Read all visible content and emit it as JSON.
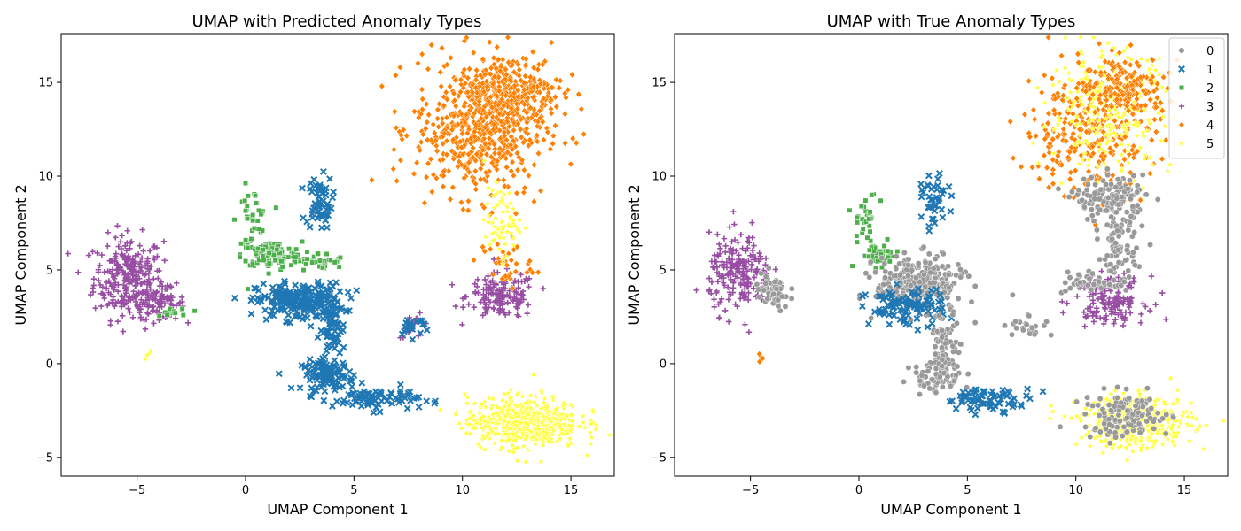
{
  "chart_data": [
    {
      "type": "scatter",
      "title": "UMAP with Predicted Anomaly Types",
      "xlabel": "UMAP Component 1",
      "ylabel": "UMAP Component 2",
      "xlim": [
        -8.5,
        17
      ],
      "ylim": [
        -6,
        17.6
      ],
      "xticks": [
        -5,
        0,
        5,
        10,
        15
      ],
      "yticks": [
        -5,
        0,
        5,
        10,
        15
      ],
      "xtick_labels": [
        "−5",
        "0",
        "5",
        "10",
        "15"
      ],
      "ytick_labels": [
        "−5",
        "0",
        "5",
        "10",
        "15"
      ],
      "grid": false,
      "legend": null,
      "clusters": [
        {
          "class": "3",
          "cx": -5.4,
          "cy": 4.6,
          "sx": 0.8,
          "sy": 1.1,
          "n": 260
        },
        {
          "class": "3",
          "cx": -4.0,
          "cy": 3.2,
          "sx": 0.6,
          "sy": 0.4,
          "n": 80
        },
        {
          "class": "3",
          "cx": 11.8,
          "cy": 3.6,
          "sx": 0.8,
          "sy": 0.6,
          "n": 150
        },
        {
          "class": "3",
          "cx": 7.8,
          "cy": 2.0,
          "sx": 0.4,
          "sy": 0.3,
          "n": 15
        },
        {
          "class": "2",
          "cx": 0.3,
          "cy": 7.6,
          "sx": 0.35,
          "sy": 0.9,
          "n": 45
        },
        {
          "class": "2",
          "cx": 1.2,
          "cy": 5.8,
          "sx": 0.7,
          "sy": 0.35,
          "n": 110
        },
        {
          "class": "2",
          "cx": 3.4,
          "cy": 5.4,
          "sx": 0.6,
          "sy": 0.25,
          "n": 35
        },
        {
          "class": "2",
          "cx": -3.3,
          "cy": 2.8,
          "sx": 0.4,
          "sy": 0.15,
          "n": 12
        },
        {
          "class": "1",
          "cx": 3.4,
          "cy": 8.6,
          "sx": 0.3,
          "sy": 0.7,
          "n": 60
        },
        {
          "class": "1",
          "cx": 2.5,
          "cy": 3.3,
          "sx": 1.0,
          "sy": 0.5,
          "n": 220
        },
        {
          "class": "1",
          "cx": 4.0,
          "cy": 1.8,
          "sx": 0.3,
          "sy": 0.8,
          "n": 60
        },
        {
          "class": "1",
          "cx": 3.8,
          "cy": -0.6,
          "sx": 0.6,
          "sy": 0.4,
          "n": 100
        },
        {
          "class": "1",
          "cx": 6.0,
          "cy": -1.9,
          "sx": 1.0,
          "sy": 0.3,
          "n": 80
        },
        {
          "class": "1",
          "cx": 7.7,
          "cy": 2.0,
          "sx": 0.4,
          "sy": 0.3,
          "n": 20
        },
        {
          "class": "4",
          "cx": 10.8,
          "cy": 12.5,
          "sx": 1.5,
          "sy": 1.8,
          "n": 520
        },
        {
          "class": "4",
          "cx": 12.2,
          "cy": 14.4,
          "sx": 1.2,
          "sy": 1.0,
          "n": 280
        },
        {
          "class": "4",
          "cx": 12.0,
          "cy": 5.3,
          "sx": 0.6,
          "sy": 0.7,
          "n": 35
        },
        {
          "class": "5",
          "cx": 11.8,
          "cy": 7.6,
          "sx": 0.4,
          "sy": 0.9,
          "n": 70
        },
        {
          "class": "5",
          "cx": 12.8,
          "cy": -3.1,
          "sx": 1.3,
          "sy": 0.7,
          "n": 520
        },
        {
          "class": "5",
          "cx": -4.5,
          "cy": 0.6,
          "sx": 0.1,
          "sy": 0.15,
          "n": 4
        }
      ]
    },
    {
      "type": "scatter",
      "title": "UMAP with True Anomaly Types",
      "xlabel": "UMAP Component 1",
      "ylabel": "UMAP Component 2",
      "xlim": [
        -8.5,
        17
      ],
      "ylim": [
        -6,
        17.6
      ],
      "xticks": [
        -5,
        0,
        5,
        10,
        15
      ],
      "yticks": [
        -5,
        0,
        5,
        10,
        15
      ],
      "xtick_labels": [
        "−5",
        "0",
        "5",
        "10",
        "15"
      ],
      "ytick_labels": [
        "−5",
        "0",
        "5",
        "10",
        "15"
      ],
      "grid": false,
      "legend": {
        "placement": "top-right",
        "entries": [
          {
            "label": "0",
            "marker": "circle",
            "color": "#999999"
          },
          {
            "label": "1",
            "marker": "x",
            "color": "#1f77b4"
          },
          {
            "label": "2",
            "marker": "square",
            "color": "#4daf4a"
          },
          {
            "label": "3",
            "marker": "plus",
            "color": "#984ea3"
          },
          {
            "label": "4",
            "marker": "diamond",
            "color": "#ff7f00"
          },
          {
            "label": "5",
            "marker": "star",
            "color": "#ffff33"
          }
        ]
      },
      "clusters": [
        {
          "class": "3",
          "cx": -5.5,
          "cy": 4.8,
          "sx": 0.7,
          "sy": 1.0,
          "n": 200
        },
        {
          "class": "0",
          "cx": -4.0,
          "cy": 3.8,
          "sx": 0.4,
          "sy": 0.5,
          "n": 60
        },
        {
          "class": "3",
          "cx": 11.6,
          "cy": 3.4,
          "sx": 0.8,
          "sy": 0.6,
          "n": 140
        },
        {
          "class": "0",
          "cx": 10.6,
          "cy": 4.3,
          "sx": 0.6,
          "sy": 0.3,
          "n": 40
        },
        {
          "class": "2",
          "cx": 0.3,
          "cy": 7.6,
          "sx": 0.3,
          "sy": 0.8,
          "n": 30
        },
        {
          "class": "2",
          "cx": 0.9,
          "cy": 5.8,
          "sx": 0.5,
          "sy": 0.3,
          "n": 40
        },
        {
          "class": "0",
          "cx": 2.8,
          "cy": 4.3,
          "sx": 1.0,
          "sy": 0.7,
          "n": 260
        },
        {
          "class": "1",
          "cx": 2.2,
          "cy": 3.0,
          "sx": 0.9,
          "sy": 0.5,
          "n": 100
        },
        {
          "class": "1",
          "cx": 3.5,
          "cy": 8.6,
          "sx": 0.3,
          "sy": 0.7,
          "n": 40
        },
        {
          "class": "0",
          "cx": 4.0,
          "cy": 1.0,
          "sx": 0.35,
          "sy": 0.9,
          "n": 80
        },
        {
          "class": "0",
          "cx": 3.6,
          "cy": -0.7,
          "sx": 0.6,
          "sy": 0.4,
          "n": 60
        },
        {
          "class": "1",
          "cx": 6.0,
          "cy": -1.9,
          "sx": 1.0,
          "sy": 0.3,
          "n": 70
        },
        {
          "class": "0",
          "cx": 7.8,
          "cy": 2.0,
          "sx": 0.5,
          "sy": 0.3,
          "n": 25
        },
        {
          "class": "4",
          "cx": 10.6,
          "cy": 12.4,
          "sx": 1.5,
          "sy": 1.7,
          "n": 280
        },
        {
          "class": "5",
          "cx": 11.6,
          "cy": 13.5,
          "sx": 1.4,
          "sy": 1.6,
          "n": 280
        },
        {
          "class": "4",
          "cx": 12.2,
          "cy": 14.8,
          "sx": 1.0,
          "sy": 0.8,
          "n": 160
        },
        {
          "class": "0",
          "cx": 11.6,
          "cy": 8.8,
          "sx": 0.8,
          "sy": 0.6,
          "n": 150
        },
        {
          "class": "0",
          "cx": 12.0,
          "cy": 6.0,
          "sx": 0.4,
          "sy": 1.0,
          "n": 80
        },
        {
          "class": "5",
          "cx": 12.8,
          "cy": -3.1,
          "sx": 1.3,
          "sy": 0.7,
          "n": 420
        },
        {
          "class": "0",
          "cx": 12.4,
          "cy": -2.8,
          "sx": 1.0,
          "sy": 0.6,
          "n": 120
        },
        {
          "class": "4",
          "cx": -4.6,
          "cy": 0.4,
          "sx": 0.15,
          "sy": 0.2,
          "n": 4
        }
      ]
    }
  ],
  "styles": {
    "class_colors": {
      "0": "#999999",
      "1": "#1f77b4",
      "2": "#4daf4a",
      "3": "#984ea3",
      "4": "#ff7f00",
      "5": "#ffff33"
    },
    "class_markers": {
      "0": "circle",
      "1": "x",
      "2": "square",
      "3": "plus",
      "4": "diamond",
      "5": "star"
    }
  }
}
